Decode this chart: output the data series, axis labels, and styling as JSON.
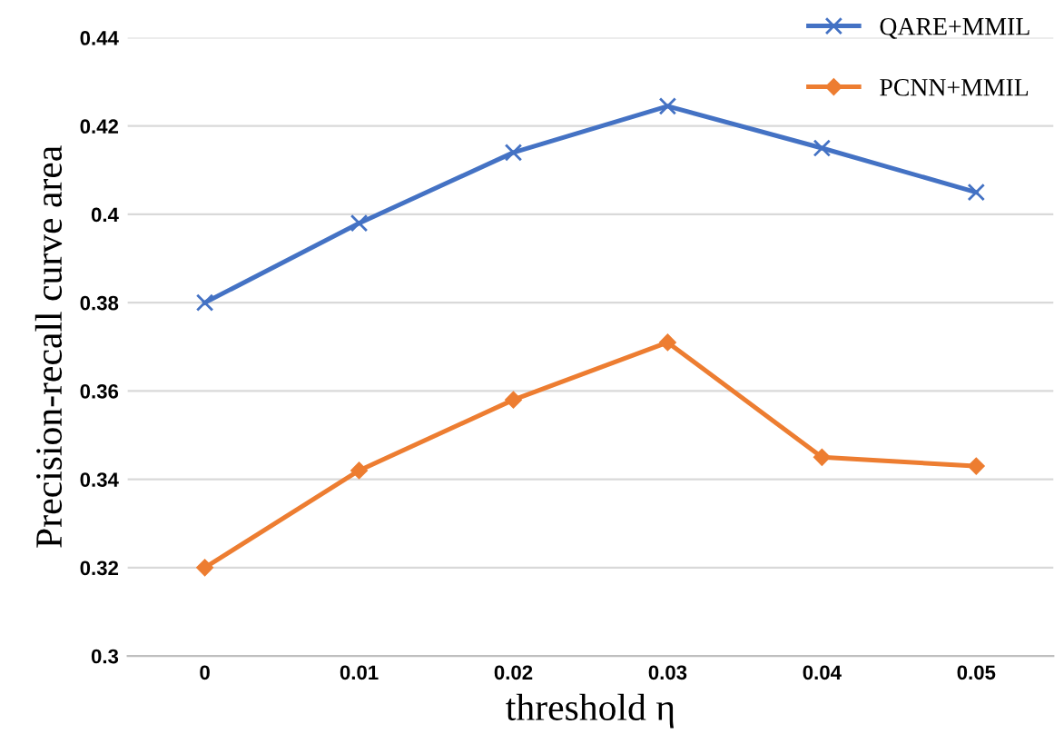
{
  "chart_data": {
    "type": "line",
    "xlabel": "threshold η",
    "ylabel": "Precision-recall curve area",
    "categories": [
      "0",
      "0.01",
      "0.02",
      "0.03",
      "0.04",
      "0.05"
    ],
    "series": [
      {
        "name": "QARE+MMIL",
        "color": "#4472c4",
        "marker": "cross",
        "values": [
          0.38,
          0.398,
          0.414,
          0.4245,
          0.415,
          0.405
        ]
      },
      {
        "name": "PCNN+MMIL",
        "color": "#ed7d31",
        "marker": "diamond",
        "values": [
          0.32,
          0.342,
          0.358,
          0.371,
          0.345,
          0.343
        ]
      }
    ],
    "ylim": [
      0.3,
      0.44
    ],
    "yticks": [
      0.3,
      0.32,
      0.34,
      0.36,
      0.38,
      0.4,
      0.42,
      0.44
    ],
    "grid": "y",
    "legend": "top right",
    "line_style": "solid"
  }
}
